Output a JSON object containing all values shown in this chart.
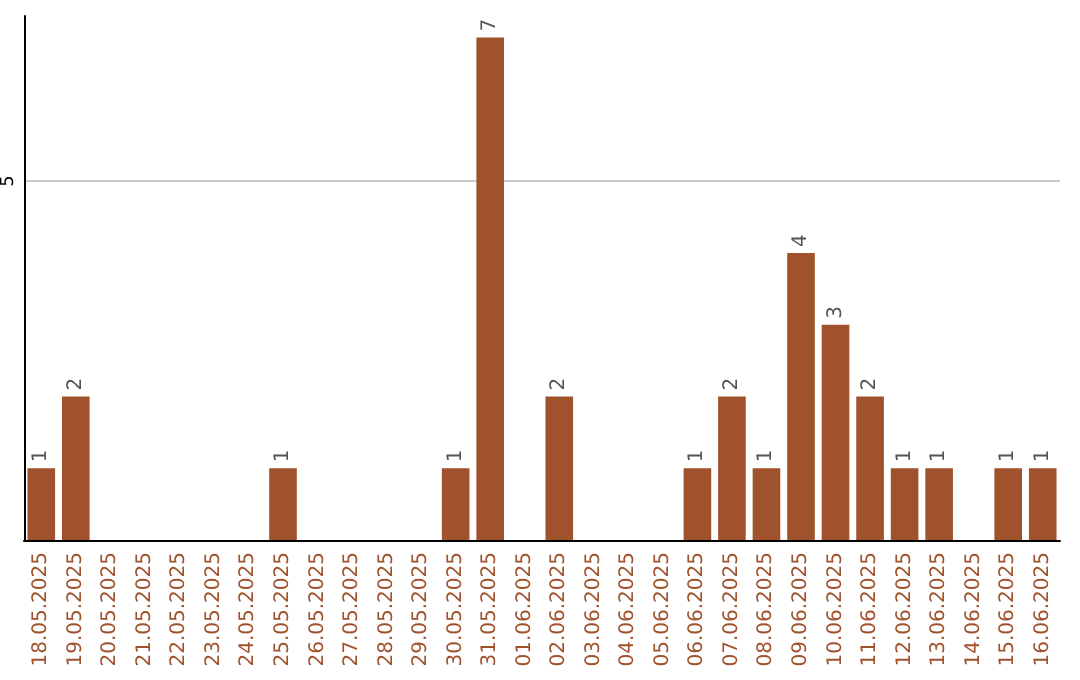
{
  "chart_data": {
    "type": "bar",
    "categories": [
      "18.05.2025",
      "19.05.2025",
      "20.05.2025",
      "21.05.2025",
      "22.05.2025",
      "23.05.2025",
      "24.05.2025",
      "25.05.2025",
      "26.05.2025",
      "27.05.2025",
      "28.05.2025",
      "29.05.2025",
      "30.05.2025",
      "31.05.2025",
      "01.06.2025",
      "02.06.2025",
      "03.06.2025",
      "04.06.2025",
      "05.06.2025",
      "06.06.2025",
      "07.06.2025",
      "08.06.2025",
      "09.06.2025",
      "10.06.2025",
      "11.06.2025",
      "12.06.2025",
      "13.06.2025",
      "14.06.2025",
      "15.06.2025",
      "16.06.2025"
    ],
    "values": [
      1,
      2,
      0,
      0,
      0,
      0,
      0,
      1,
      0,
      0,
      0,
      0,
      1,
      7,
      0,
      2,
      0,
      0,
      0,
      1,
      2,
      1,
      4,
      3,
      2,
      1,
      1,
      0,
      1,
      1
    ],
    "value_labels": [
      "1",
      "2",
      null,
      null,
      null,
      null,
      null,
      "1",
      null,
      null,
      null,
      null,
      "1",
      "7",
      null,
      "2",
      null,
      null,
      null,
      "1",
      "2",
      "1",
      "4",
      "3",
      "2",
      "1",
      "1",
      null,
      "1",
      "1"
    ],
    "color": "#a0522d",
    "ylim": [
      0,
      7.3
    ],
    "yticks": [
      5
    ],
    "grid": "y"
  }
}
